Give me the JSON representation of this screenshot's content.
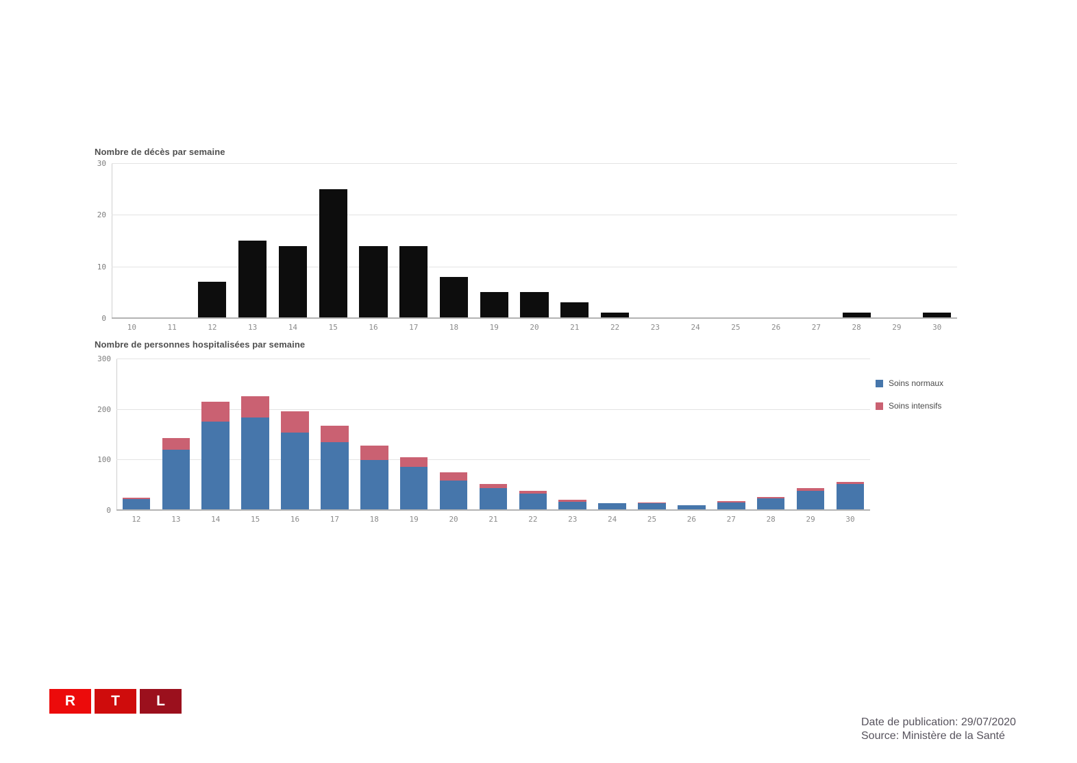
{
  "chart_data": [
    {
      "type": "bar",
      "title": "Nombre de décès par semaine",
      "categories": [
        "10",
        "11",
        "12",
        "13",
        "14",
        "15",
        "16",
        "17",
        "18",
        "19",
        "20",
        "21",
        "22",
        "23",
        "24",
        "25",
        "26",
        "27",
        "28",
        "29",
        "30"
      ],
      "values": [
        0,
        0,
        7,
        15,
        14,
        25,
        14,
        14,
        8,
        5,
        5,
        3,
        1,
        0,
        0,
        0,
        0,
        0,
        1,
        0,
        1
      ],
      "xlabel": "",
      "ylabel": "",
      "ylim": [
        0,
        30
      ],
      "yticks": [
        0,
        10,
        20,
        30
      ],
      "bar_color": "#0d0d0d",
      "grid": true,
      "legend_position": "none"
    },
    {
      "type": "stacked-bar",
      "title": "Nombre de personnes hospitalisées par semaine",
      "categories": [
        "12",
        "13",
        "14",
        "15",
        "16",
        "17",
        "18",
        "19",
        "20",
        "21",
        "22",
        "23",
        "24",
        "25",
        "26",
        "27",
        "28",
        "29",
        "30"
      ],
      "series": [
        {
          "name": "Soins normaux",
          "color": "#4676ab",
          "values": [
            22,
            120,
            175,
            183,
            153,
            134,
            99,
            85,
            59,
            44,
            32,
            16,
            14,
            13,
            10,
            15,
            23,
            38,
            51
          ]
        },
        {
          "name": "Soins intensifs",
          "color": "#ca6172",
          "values": [
            3,
            23,
            40,
            42,
            42,
            33,
            28,
            20,
            16,
            8,
            6,
            4,
            0,
            2,
            0,
            3,
            3,
            6,
            5
          ]
        }
      ],
      "xlabel": "",
      "ylabel": "",
      "ylim": [
        0,
        300
      ],
      "yticks": [
        0,
        100,
        200,
        300
      ],
      "grid": true,
      "legend_position": "right"
    }
  ],
  "logo": {
    "letters": [
      "R",
      "T",
      "L"
    ],
    "colors": [
      "#ec0b0b",
      "#cf0c0c",
      "#9b101d"
    ]
  },
  "footer": {
    "publication": "Date de publication: 29/07/2020",
    "source": "Source: Ministère de la Santé"
  }
}
